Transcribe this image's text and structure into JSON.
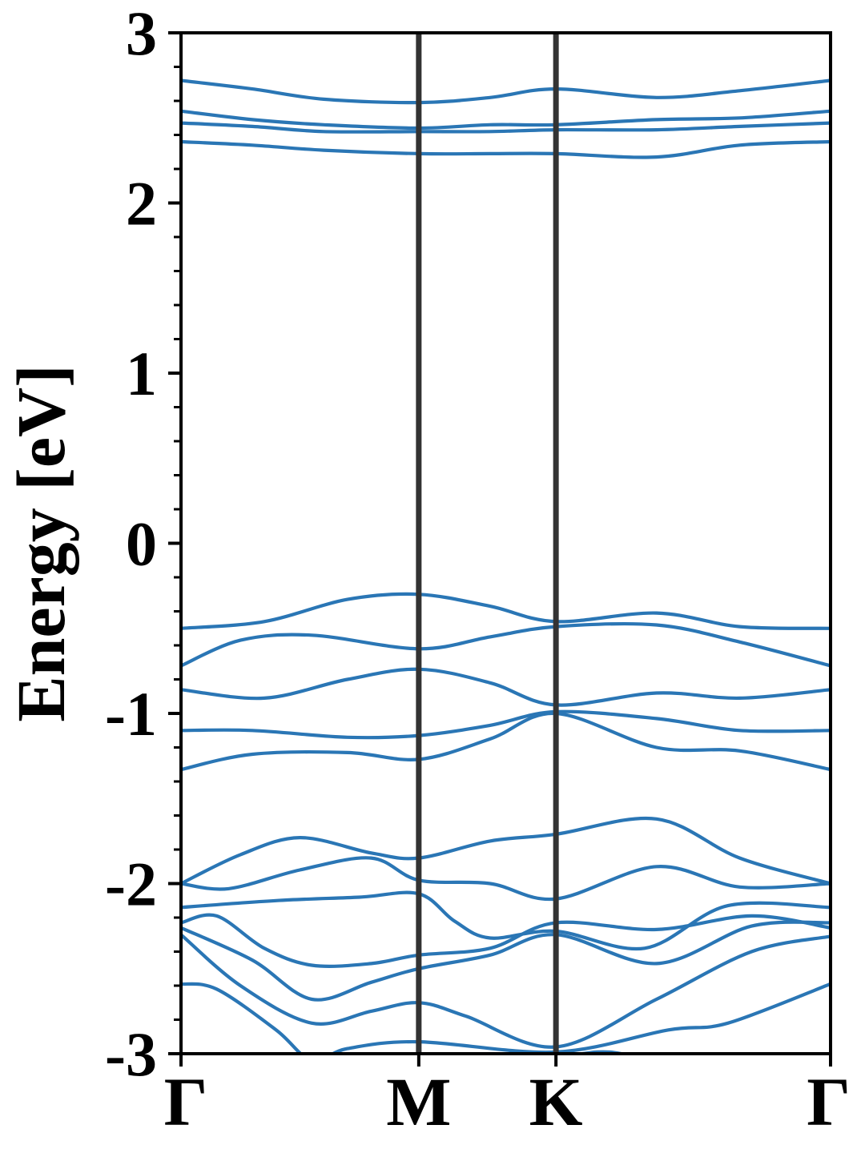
{
  "chart_data": {
    "type": "line",
    "title": "",
    "ylabel": "Energy [eV]",
    "xlabel": "",
    "ylim": [
      -3,
      3
    ],
    "yticks": [
      -3,
      -2,
      -1,
      0,
      1,
      2,
      3
    ],
    "ytick_labels": [
      "-3",
      "-2",
      "-1",
      "0",
      "1",
      "2",
      "3"
    ],
    "minor_ytick_step": 0.2,
    "kpath": [
      {
        "label": "Γ",
        "x": 0.0
      },
      {
        "label": "M",
        "x": 1.0
      },
      {
        "label": "K",
        "x": 1.577
      },
      {
        "label": "Γ",
        "x": 2.732
      }
    ],
    "vertical_lines_at": [
      1.0,
      1.577
    ],
    "colors": {
      "band": "#2a76b5",
      "vline": "#333333",
      "axes": "#000000"
    },
    "bands": [
      {
        "x": [
          0,
          0.3,
          0.6,
          1.0,
          1.3,
          1.577,
          2.0,
          2.35,
          2.732
        ],
        "y": [
          2.72,
          2.67,
          2.61,
          2.59,
          2.62,
          2.67,
          2.62,
          2.66,
          2.72
        ]
      },
      {
        "x": [
          0,
          0.3,
          0.6,
          1.0,
          1.3,
          1.577,
          2.0,
          2.35,
          2.732
        ],
        "y": [
          2.54,
          2.49,
          2.46,
          2.44,
          2.46,
          2.46,
          2.49,
          2.5,
          2.54
        ]
      },
      {
        "x": [
          0,
          0.3,
          0.6,
          1.0,
          1.3,
          1.577,
          2.0,
          2.35,
          2.732
        ],
        "y": [
          2.47,
          2.45,
          2.42,
          2.42,
          2.42,
          2.43,
          2.43,
          2.45,
          2.47
        ]
      },
      {
        "x": [
          0,
          0.3,
          0.6,
          1.0,
          1.3,
          1.577,
          2.0,
          2.35,
          2.732
        ],
        "y": [
          2.36,
          2.34,
          2.31,
          2.29,
          2.29,
          2.29,
          2.27,
          2.34,
          2.36
        ]
      },
      {
        "x": [
          0,
          0.35,
          0.7,
          1.0,
          1.3,
          1.577,
          2.0,
          2.35,
          2.732
        ],
        "y": [
          -0.5,
          -0.46,
          -0.33,
          -0.3,
          -0.37,
          -0.46,
          -0.41,
          -0.49,
          -0.5
        ]
      },
      {
        "x": [
          0,
          0.25,
          0.55,
          1.0,
          1.3,
          1.577,
          2.0,
          2.35,
          2.732
        ],
        "y": [
          -0.72,
          -0.57,
          -0.54,
          -0.62,
          -0.55,
          -0.49,
          -0.48,
          -0.58,
          -0.72
        ]
      },
      {
        "x": [
          0,
          0.35,
          0.7,
          1.0,
          1.3,
          1.577,
          2.0,
          2.35,
          2.732
        ],
        "y": [
          -0.86,
          -0.91,
          -0.8,
          -0.74,
          -0.82,
          -0.95,
          -0.88,
          -0.91,
          -0.86
        ]
      },
      {
        "x": [
          0,
          0.3,
          0.7,
          1.0,
          1.3,
          1.577,
          2.0,
          2.35,
          2.732
        ],
        "y": [
          -1.1,
          -1.1,
          -1.14,
          -1.13,
          -1.07,
          -0.99,
          -1.03,
          -1.1,
          -1.1
        ]
      },
      {
        "x": [
          0,
          0.3,
          0.7,
          1.0,
          1.3,
          1.577,
          2.0,
          2.35,
          2.732
        ],
        "y": [
          -1.33,
          -1.24,
          -1.23,
          -1.27,
          -1.15,
          -1.0,
          -1.2,
          -1.22,
          -1.33
        ]
      },
      {
        "x": [
          0,
          0.25,
          0.5,
          0.8,
          1.0,
          1.3,
          1.577,
          2.0,
          2.35,
          2.732
        ],
        "y": [
          -2.0,
          -1.83,
          -1.73,
          -1.82,
          -1.85,
          -1.75,
          -1.71,
          -1.62,
          -1.85,
          -2.0
        ]
      },
      {
        "x": [
          0,
          0.2,
          0.5,
          0.8,
          1.0,
          1.3,
          1.577,
          2.0,
          2.35,
          2.732
        ],
        "y": [
          -2.0,
          -2.03,
          -1.92,
          -1.85,
          -1.98,
          -2.0,
          -2.09,
          -1.9,
          -2.02,
          -2.0
        ]
      },
      {
        "x": [
          0,
          0.4,
          0.75,
          1.0,
          1.15,
          1.3,
          1.577,
          1.95,
          2.3,
          2.732
        ],
        "y": [
          -2.14,
          -2.1,
          -2.08,
          -2.06,
          -2.22,
          -2.32,
          -2.28,
          -2.38,
          -2.13,
          -2.14
        ]
      },
      {
        "x": [
          0,
          0.15,
          0.35,
          0.55,
          0.8,
          1.0,
          1.3,
          1.577,
          2.0,
          2.4,
          2.732
        ],
        "y": [
          -2.23,
          -2.19,
          -2.38,
          -2.48,
          -2.47,
          -2.42,
          -2.38,
          -2.23,
          -2.27,
          -2.19,
          -2.26
        ]
      },
      {
        "x": [
          0,
          0.3,
          0.55,
          0.8,
          1.0,
          1.3,
          1.577,
          2.0,
          2.4,
          2.732
        ],
        "y": [
          -2.26,
          -2.45,
          -2.68,
          -2.58,
          -2.5,
          -2.42,
          -2.3,
          -2.47,
          -2.25,
          -2.23
        ]
      },
      {
        "x": [
          0,
          0.25,
          0.55,
          0.8,
          1.0,
          1.2,
          1.577,
          2.0,
          2.4,
          2.732
        ],
        "y": [
          -2.3,
          -2.6,
          -2.82,
          -2.75,
          -2.7,
          -2.78,
          -2.96,
          -2.68,
          -2.4,
          -2.31
        ]
      },
      {
        "x": [
          0,
          0.15,
          0.4,
          0.55,
          0.7,
          1.0,
          1.577,
          2.05,
          2.3,
          2.732
        ],
        "y": [
          -2.59,
          -2.62,
          -2.86,
          -3.04,
          -2.97,
          -2.93,
          -2.99,
          -2.86,
          -2.82,
          -2.59
        ]
      },
      {
        "x": [
          1.3,
          1.577,
          1.75,
          1.85,
          1.95
        ],
        "y": [
          -3.04,
          -3.02,
          -2.99,
          -3.0,
          -3.04
        ]
      }
    ]
  }
}
